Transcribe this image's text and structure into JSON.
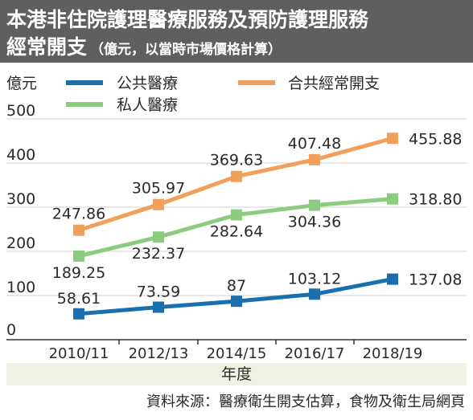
{
  "header": {
    "title_line1": "本港非住院護理醫療服務及預防護理服務",
    "title_line2": "經常開支",
    "title_note": "（億元，以當時市場價格計算）"
  },
  "footer": {
    "source": "資料來源：醫療衛生開支估算，食物及衛生局網頁"
  },
  "chart_data": {
    "type": "line",
    "ylabel": "億元",
    "xlabel": "年度",
    "ylim": [
      0,
      500
    ],
    "yticks": [
      0,
      100,
      200,
      300,
      400,
      500
    ],
    "x": [
      "2010/11",
      "2012/13",
      "2014/15",
      "2016/17",
      "2018/19"
    ],
    "grid": true,
    "legend": "top",
    "series": [
      {
        "name": "公共醫療",
        "color": "#1a6fae",
        "marker": "square",
        "values": [
          58.61,
          73.59,
          87,
          103.12,
          137.08
        ],
        "labels": [
          "58.61",
          "73.59",
          "87",
          "103.12",
          "137.08"
        ]
      },
      {
        "name": "合共經常開支",
        "color": "#f0a05a",
        "marker": "square",
        "values": [
          247.86,
          305.97,
          369.63,
          407.48,
          455.88
        ],
        "labels": [
          "247.86",
          "305.97",
          "369.63",
          "407.48",
          "455.88"
        ]
      },
      {
        "name": "私人醫療",
        "color": "#8ccc7e",
        "marker": "square",
        "values": [
          189.25,
          232.37,
          282.64,
          304.36,
          318.8
        ],
        "labels": [
          "189.25",
          "232.37",
          "282.64",
          "304.36",
          "318.80"
        ]
      }
    ]
  }
}
